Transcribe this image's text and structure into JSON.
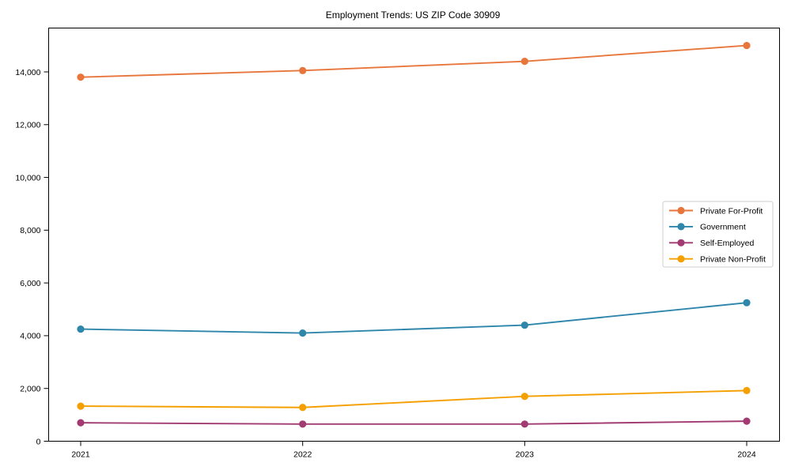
{
  "chart_data": {
    "type": "line",
    "title": "Employment Trends: US ZIP Code 30909",
    "xlabel": "",
    "ylabel": "",
    "grid": false,
    "legend": {
      "position": "center-right",
      "entries": [
        "Private For-Profit",
        "Government",
        "Self-Employed",
        "Private Non-Profit"
      ]
    },
    "x_axis": {
      "ticks": [
        {
          "value": 2021,
          "label": "2021"
        },
        {
          "value": 2022,
          "label": "2022"
        },
        {
          "value": 2023,
          "label": "2023"
        },
        {
          "value": 2024,
          "label": "2024"
        }
      ]
    },
    "y_axis": {
      "ylim": [
        0,
        15700
      ],
      "ticks": [
        {
          "value": 0,
          "label": "0"
        },
        {
          "value": 2000,
          "label": "2,000"
        },
        {
          "value": 4000,
          "label": "4,000"
        },
        {
          "value": 6000,
          "label": "6,000"
        },
        {
          "value": 8000,
          "label": "8,000"
        },
        {
          "value": 10000,
          "label": "10,000"
        },
        {
          "value": 12000,
          "label": "12,000"
        },
        {
          "value": 14000,
          "label": "14,000"
        }
      ]
    },
    "series": [
      {
        "name": "Private For-Profit",
        "color": "#E8763C",
        "marker": "circle",
        "values": [
          13800,
          14050,
          14400,
          15000
        ]
      },
      {
        "name": "Government",
        "color": "#2E86AB",
        "marker": "circle",
        "values": [
          4250,
          4100,
          4400,
          5250
        ]
      },
      {
        "name": "Self-Employed",
        "color": "#A23B72",
        "marker": "circle",
        "values": [
          700,
          650,
          650,
          760
        ]
      },
      {
        "name": "Private Non-Profit",
        "color": "#F5A002",
        "marker": "circle",
        "values": [
          1330,
          1280,
          1700,
          1920
        ]
      }
    ],
    "colors": {
      "spine": "#000000",
      "tick_text": "#000000",
      "legend_border": "#cccccc",
      "legend_background": "#ffffff",
      "plot_background": "#ffffff"
    }
  }
}
